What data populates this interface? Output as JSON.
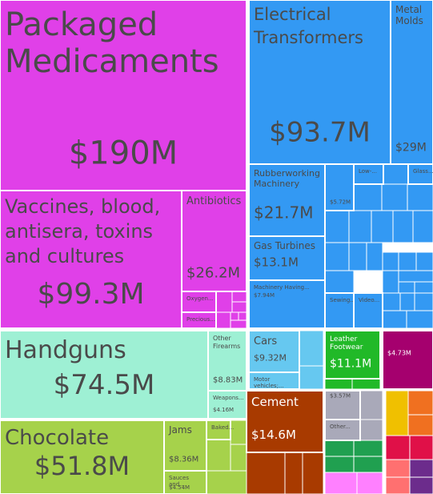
{
  "chart_data": {
    "type": "treemap",
    "title": "",
    "tiles": [
      {
        "name": "Packaged Medicaments",
        "value": "$190M",
        "color": "#e040e8",
        "big": true
      },
      {
        "name": "Vaccines, blood, antisera, toxins and cultures",
        "value": "$99.3M",
        "color": "#e040e8",
        "big": true
      },
      {
        "name": "Antibiotics",
        "value": "$26.2M",
        "color": "#e040e8"
      },
      {
        "name": "Oxygen...",
        "value": "",
        "color": "#e040e8"
      },
      {
        "name": "Precious...",
        "value": "",
        "color": "#e040e8"
      },
      {
        "name": "Electrical Transformers",
        "value": "$93.7M",
        "color": "#3399f3",
        "big": true
      },
      {
        "name": "Metal Molds",
        "value": "$29M",
        "color": "#3399f3"
      },
      {
        "name": "Rubberworking Machinery",
        "value": "$21.7M",
        "color": "#3399f3"
      },
      {
        "name": "",
        "value": "$5.72M",
        "color": "#3399f3"
      },
      {
        "name": "Low-...",
        "value": "",
        "color": "#3399f3"
      },
      {
        "name": "Glass...",
        "value": "",
        "color": "#3399f3"
      },
      {
        "name": "Gas Turbines",
        "value": "$13.1M",
        "color": "#3399f3"
      },
      {
        "name": "Machinery Having...",
        "value": "$7.94M",
        "color": "#3399f3"
      },
      {
        "name": "Sewing...",
        "value": "",
        "color": "#3399f3"
      },
      {
        "name": "Video...",
        "value": "",
        "color": "#3399f3"
      },
      {
        "name": "Handguns",
        "value": "$74.5M",
        "color": "#9ef0d4",
        "big": true
      },
      {
        "name": "Other Firearms",
        "value": "$8.83M",
        "color": "#9ef0d4"
      },
      {
        "name": "Weapons...",
        "value": "$4.16M",
        "color": "#9ef0d4"
      },
      {
        "name": "Chocolate",
        "value": "$51.8M",
        "color": "#a6d24b",
        "big": true
      },
      {
        "name": "Jams",
        "value": "$8.36M",
        "color": "#a6d24b"
      },
      {
        "name": "Baked...",
        "value": "",
        "color": "#a6d24b"
      },
      {
        "name": "Sauces and...",
        "value": "$4.54M",
        "color": "#a6d24b"
      },
      {
        "name": "Cars",
        "value": "$9.32M",
        "color": "#66c8f0"
      },
      {
        "name": "Motor vehicles;...",
        "value": "",
        "color": "#66c8f0"
      },
      {
        "name": "Leather Footwear",
        "value": "$11.1M",
        "color": "#21b928"
      },
      {
        "name": "",
        "value": "$4.73M",
        "color": "#a5006e"
      },
      {
        "name": "Cement",
        "value": "$14.6M",
        "color": "#a83a00"
      },
      {
        "name": "",
        "value": "$3.57M",
        "color": "#a9a9b9"
      },
      {
        "name": "Other...",
        "value": "",
        "color": "#a9a9b9"
      }
    ]
  }
}
